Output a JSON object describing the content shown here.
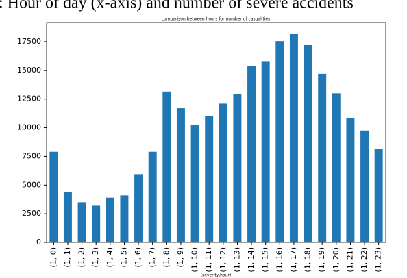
{
  "caption": ": Hour of day (x-axis) and number of severe accidents",
  "chart_data": {
    "type": "bar",
    "title": "comparison between hours for number of casualities",
    "x_label": "(severity,hour)",
    "categories": [
      "(1, 0)",
      "(1, 1)",
      "(1, 2)",
      "(1, 3)",
      "(1, 4)",
      "(1, 5)",
      "(1, 6)",
      "(1, 7)",
      "(1, 8)",
      "(1, 9)",
      "(1, 10)",
      "(1, 11)",
      "(1, 12)",
      "(1, 13)",
      "(1, 14)",
      "(1, 15)",
      "(1, 16)",
      "(1, 17)",
      "(1, 18)",
      "(1, 19)",
      "(1, 20)",
      "(1, 21)",
      "(1, 22)",
      "(1, 23)"
    ],
    "values": [
      7900,
      4400,
      3500,
      3200,
      3900,
      4100,
      5950,
      7900,
      13150,
      11700,
      10250,
      11000,
      12100,
      12900,
      15350,
      15800,
      17550,
      18200,
      17200,
      14700,
      13000,
      10850,
      9750,
      8150
    ],
    "color": "#1f77b4",
    "ylim": [
      0,
      19170
    ],
    "yticks": [
      0,
      2500,
      5000,
      7500,
      10000,
      12500,
      15000,
      17500
    ],
    "grid": false
  }
}
